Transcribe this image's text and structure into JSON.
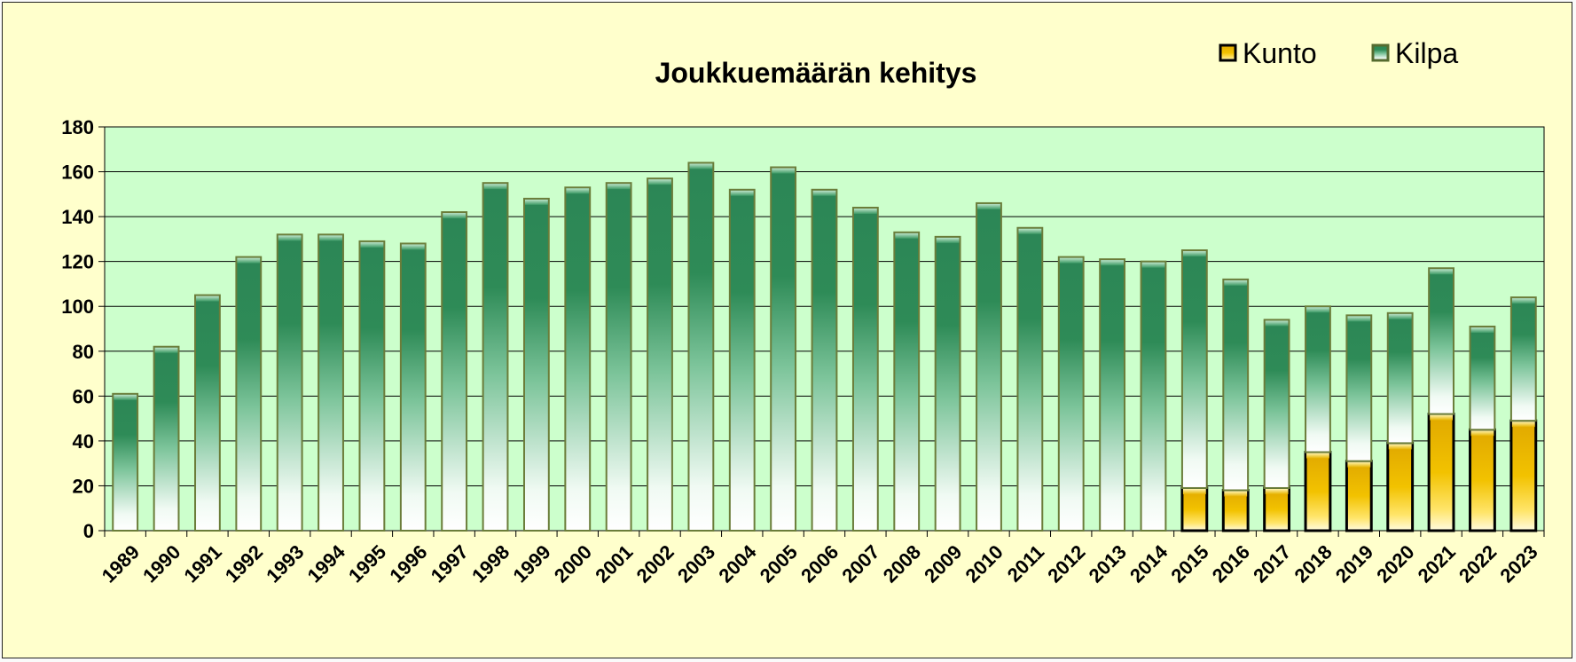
{
  "chart_data": {
    "type": "bar",
    "stacked": true,
    "title": "Joukkuemäärän kehitys",
    "xlabel": "",
    "ylabel": "",
    "ylim": [
      0,
      180
    ],
    "yticks": [
      "0",
      "20",
      "40",
      "60",
      "80",
      "100",
      "120",
      "140",
      "160",
      "180"
    ],
    "grid": true,
    "legend_position": "top-right",
    "categories": [
      "1989",
      "1990",
      "1991",
      "1992",
      "1993",
      "1994",
      "1995",
      "1996",
      "1997",
      "1998",
      "1999",
      "2000",
      "2001",
      "2002",
      "2003",
      "2004",
      "2005",
      "2006",
      "2007",
      "2008",
      "2009",
      "2010",
      "2011",
      "2012",
      "2013",
      "2014",
      "2015",
      "2016",
      "2017",
      "2018",
      "2019",
      "2020",
      "2021",
      "2022",
      "2023"
    ],
    "series": [
      {
        "name": "Kunto",
        "color": "#f2c200",
        "values": [
          0,
          0,
          0,
          0,
          0,
          0,
          0,
          0,
          0,
          0,
          0,
          0,
          0,
          0,
          0,
          0,
          0,
          0,
          0,
          0,
          0,
          0,
          0,
          0,
          0,
          0,
          19,
          18,
          19,
          35,
          31,
          39,
          52,
          45,
          49
        ]
      },
      {
        "name": "Kilpa",
        "color": "#2e8b57",
        "values": [
          61,
          82,
          105,
          122,
          132,
          132,
          129,
          128,
          142,
          155,
          148,
          153,
          155,
          157,
          164,
          152,
          162,
          152,
          144,
          133,
          131,
          146,
          135,
          122,
          121,
          120,
          106,
          94,
          75,
          65,
          65,
          58,
          65,
          46,
          55
        ]
      }
    ],
    "colors": {
      "background": "#ffffcc",
      "plot_background": "#ccffcc",
      "gridline": "#000000"
    }
  }
}
